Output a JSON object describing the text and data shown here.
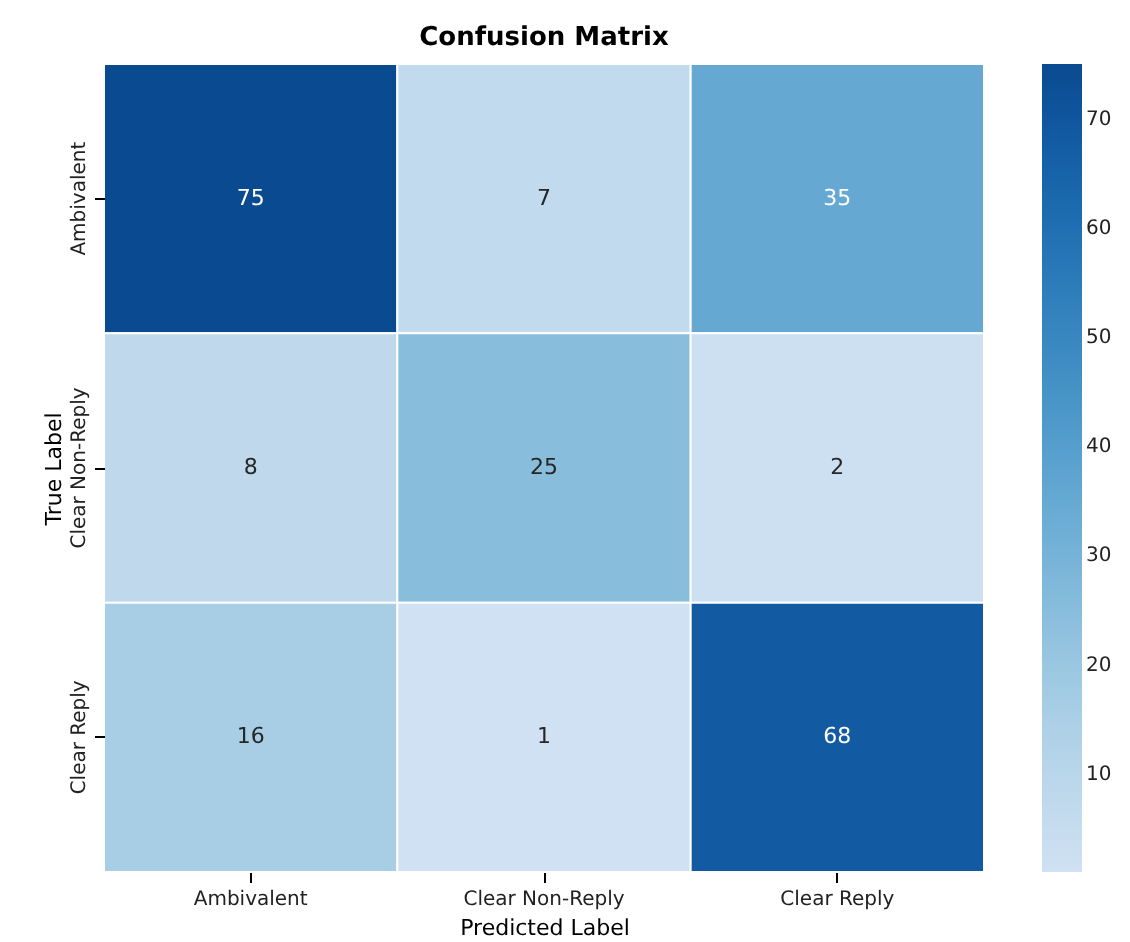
{
  "chart_data": {
    "type": "heatmap",
    "title": "Confusion Matrix",
    "xlabel": "Predicted Label",
    "ylabel": "True Label",
    "categories": [
      "Ambivalent",
      "Clear Non-Reply",
      "Clear Reply"
    ],
    "y_categories": [
      "Ambivalent",
      "Clear Non-Reply",
      "Clear Reply"
    ],
    "cells": [
      [
        75,
        7,
        35
      ],
      [
        8,
        25,
        2
      ],
      [
        16,
        1,
        68
      ]
    ],
    "clim": [
      1,
      75
    ],
    "cticks": [
      10,
      20,
      30,
      40,
      50,
      60,
      70
    ],
    "data_labels": true
  }
}
